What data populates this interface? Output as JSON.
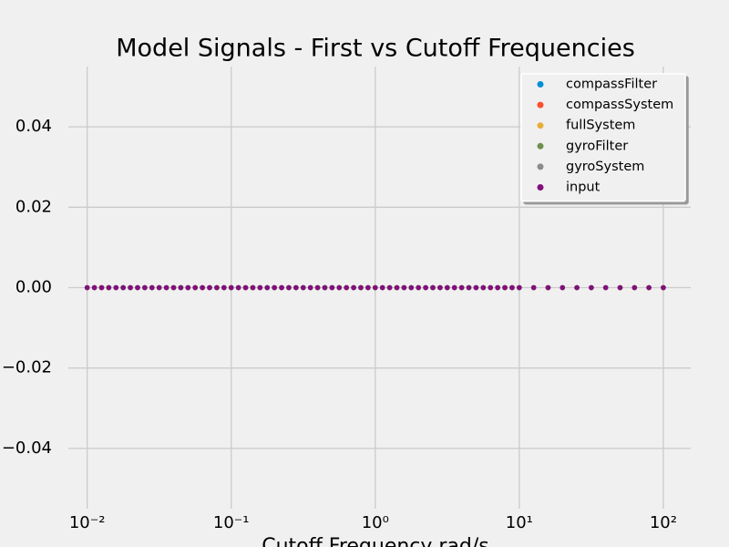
{
  "chart_data": {
    "type": "scatter",
    "title": "Model Signals - First vs Cutoff Frequencies",
    "x_label": "Cutoff Frequency rad/s",
    "xscale": "log",
    "grid": true,
    "legend_position": "upper right",
    "xlim": [
      0.0074,
      155
    ],
    "ylim": [
      -0.055,
      0.055
    ],
    "xticks": [
      {
        "value": 0.01,
        "label": "10⁻²"
      },
      {
        "value": 0.1,
        "label": "10⁻¹"
      },
      {
        "value": 1,
        "label": "10⁰"
      },
      {
        "value": 10,
        "label": "10¹"
      },
      {
        "value": 100,
        "label": "10²"
      }
    ],
    "yticks": [
      {
        "value": -0.04,
        "label": "−0.04"
      },
      {
        "value": -0.02,
        "label": "−0.02"
      },
      {
        "value": 0,
        "label": "0.00"
      },
      {
        "value": 0.02,
        "label": "0.02"
      },
      {
        "value": 0.04,
        "label": "0.04"
      }
    ],
    "x": [
      0.01,
      0.01122,
      0.01259,
      0.01413,
      0.01585,
      0.01778,
      0.01995,
      0.02239,
      0.02512,
      0.02818,
      0.03162,
      0.03548,
      0.03981,
      0.04467,
      0.05012,
      0.05623,
      0.0631,
      0.07079,
      0.07943,
      0.08913,
      0.1,
      0.1122,
      0.1259,
      0.1413,
      0.1585,
      0.1778,
      0.1995,
      0.2239,
      0.2512,
      0.2818,
      0.3162,
      0.3548,
      0.3981,
      0.4467,
      0.5012,
      0.5623,
      0.631,
      0.7079,
      0.7943,
      0.8913,
      1,
      1.122,
      1.259,
      1.413,
      1.585,
      1.778,
      1.995,
      2.239,
      2.512,
      2.818,
      3.162,
      3.548,
      3.981,
      4.467,
      5.012,
      5.623,
      6.31,
      7.079,
      7.943,
      8.913,
      10,
      12.59,
      15.85,
      19.95,
      25.12,
      31.62,
      39.81,
      50.12,
      63.1,
      79.43,
      100
    ],
    "series": [
      {
        "name": "compassFilter",
        "color": "#008fd5",
        "values": [
          0,
          0,
          0,
          0,
          0,
          0,
          0,
          0,
          0,
          0,
          0,
          0,
          0,
          0,
          0,
          0,
          0,
          0,
          0,
          0,
          0,
          0,
          0,
          0,
          0,
          0,
          0,
          0,
          0,
          0,
          0,
          0,
          0,
          0,
          0,
          0,
          0,
          0,
          0,
          0,
          0,
          0,
          0,
          0,
          0,
          0,
          0,
          0,
          0,
          0,
          0,
          0,
          0,
          0,
          0,
          0,
          0,
          0,
          0,
          0,
          0,
          0,
          0,
          0,
          0,
          0,
          0,
          0,
          0,
          0,
          0
        ]
      },
      {
        "name": "compassSystem",
        "color": "#fc4f30",
        "values": [
          0,
          0,
          0,
          0,
          0,
          0,
          0,
          0,
          0,
          0,
          0,
          0,
          0,
          0,
          0,
          0,
          0,
          0,
          0,
          0,
          0,
          0,
          0,
          0,
          0,
          0,
          0,
          0,
          0,
          0,
          0,
          0,
          0,
          0,
          0,
          0,
          0,
          0,
          0,
          0,
          0,
          0,
          0,
          0,
          0,
          0,
          0,
          0,
          0,
          0,
          0,
          0,
          0,
          0,
          0,
          0,
          0,
          0,
          0,
          0,
          0,
          0,
          0,
          0,
          0,
          0,
          0,
          0,
          0,
          0,
          0
        ]
      },
      {
        "name": "fullSystem",
        "color": "#e5ae38",
        "values": [
          0,
          0,
          0,
          0,
          0,
          0,
          0,
          0,
          0,
          0,
          0,
          0,
          0,
          0,
          0,
          0,
          0,
          0,
          0,
          0,
          0,
          0,
          0,
          0,
          0,
          0,
          0,
          0,
          0,
          0,
          0,
          0,
          0,
          0,
          0,
          0,
          0,
          0,
          0,
          0,
          0,
          0,
          0,
          0,
          0,
          0,
          0,
          0,
          0,
          0,
          0,
          0,
          0,
          0,
          0,
          0,
          0,
          0,
          0,
          0,
          0,
          0,
          0,
          0,
          0,
          0,
          0,
          0,
          0,
          0,
          0
        ]
      },
      {
        "name": "gyroFilter",
        "color": "#6d904f",
        "values": [
          0,
          0,
          0,
          0,
          0,
          0,
          0,
          0,
          0,
          0,
          0,
          0,
          0,
          0,
          0,
          0,
          0,
          0,
          0,
          0,
          0,
          0,
          0,
          0,
          0,
          0,
          0,
          0,
          0,
          0,
          0,
          0,
          0,
          0,
          0,
          0,
          0,
          0,
          0,
          0,
          0,
          0,
          0,
          0,
          0,
          0,
          0,
          0,
          0,
          0,
          0,
          0,
          0,
          0,
          0,
          0,
          0,
          0,
          0,
          0,
          0,
          0,
          0,
          0,
          0,
          0,
          0,
          0,
          0,
          0,
          0
        ]
      },
      {
        "name": "gyroSystem",
        "color": "#8b8b8b",
        "values": [
          0,
          0,
          0,
          0,
          0,
          0,
          0,
          0,
          0,
          0,
          0,
          0,
          0,
          0,
          0,
          0,
          0,
          0,
          0,
          0,
          0,
          0,
          0,
          0,
          0,
          0,
          0,
          0,
          0,
          0,
          0,
          0,
          0,
          0,
          0,
          0,
          0,
          0,
          0,
          0,
          0,
          0,
          0,
          0,
          0,
          0,
          0,
          0,
          0,
          0,
          0,
          0,
          0,
          0,
          0,
          0,
          0,
          0,
          0,
          0,
          0,
          0,
          0,
          0,
          0,
          0,
          0,
          0,
          0,
          0,
          0
        ]
      },
      {
        "name": "input",
        "color": "#810f7c",
        "values": [
          0,
          0,
          0,
          0,
          0,
          0,
          0,
          0,
          0,
          0,
          0,
          0,
          0,
          0,
          0,
          0,
          0,
          0,
          0,
          0,
          0,
          0,
          0,
          0,
          0,
          0,
          0,
          0,
          0,
          0,
          0,
          0,
          0,
          0,
          0,
          0,
          0,
          0,
          0,
          0,
          0,
          0,
          0,
          0,
          0,
          0,
          0,
          0,
          0,
          0,
          0,
          0,
          0,
          0,
          0,
          0,
          0,
          0,
          0,
          0,
          0,
          0,
          0,
          0,
          0,
          0,
          0,
          0,
          0,
          0,
          0
        ]
      }
    ]
  }
}
